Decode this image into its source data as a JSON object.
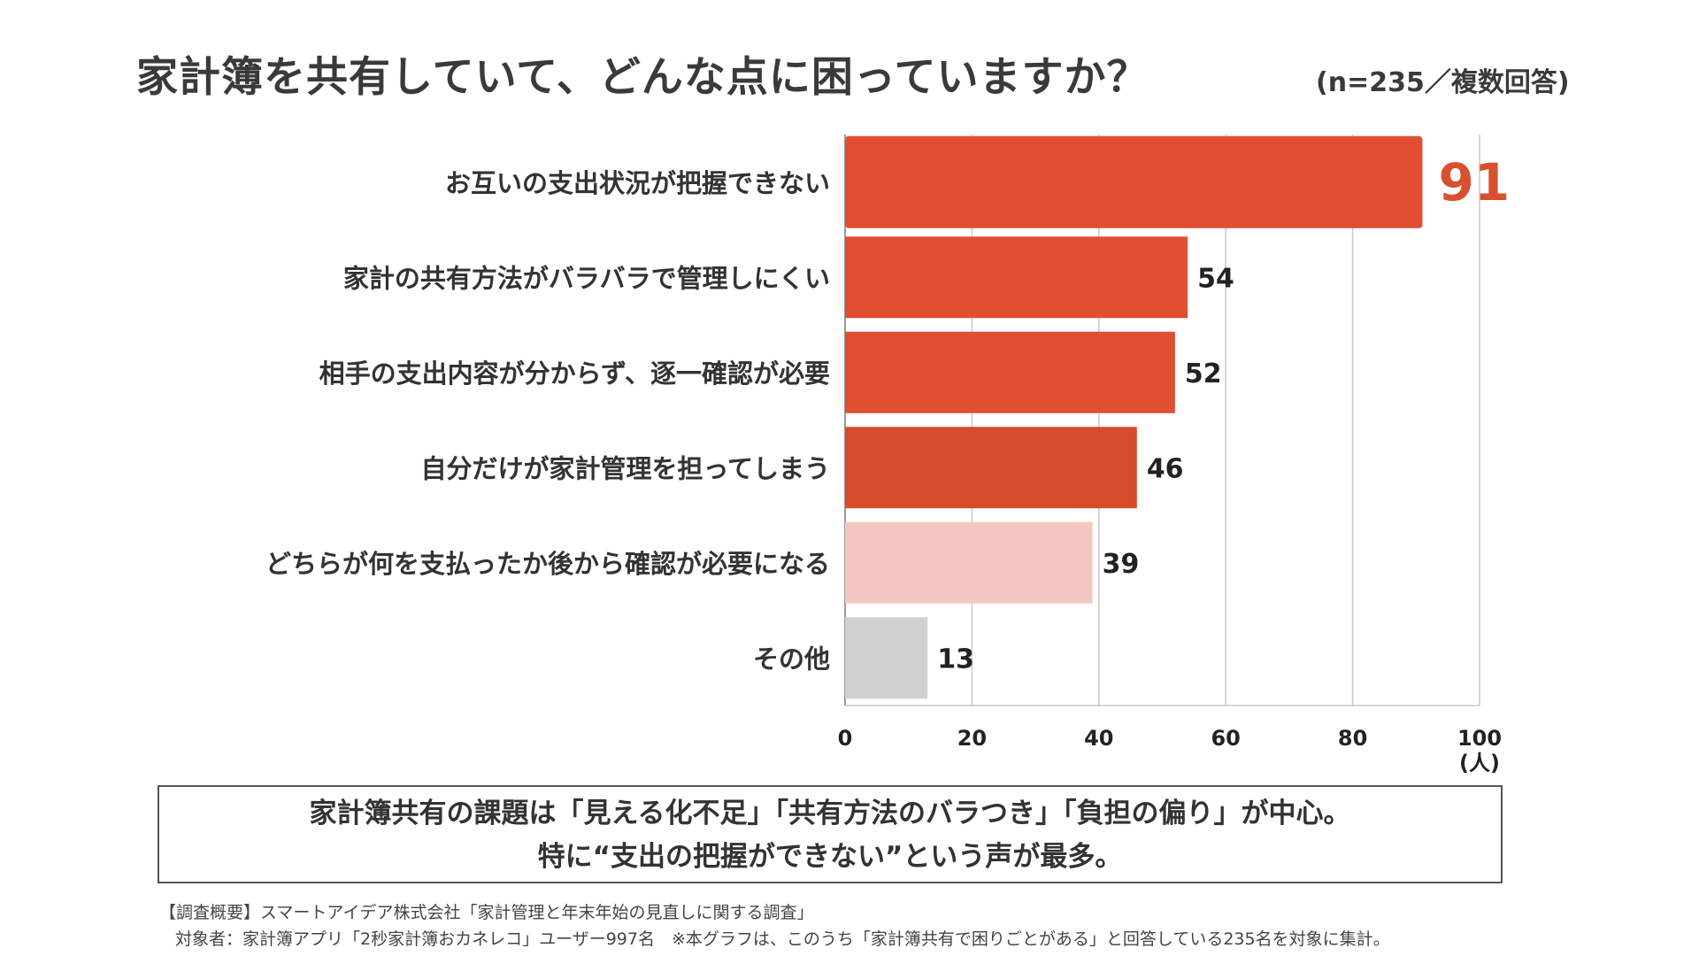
{
  "title": "家計簿を共有していて、どんな点に困っていますか？",
  "subtitle": "(n=235／複数回答)",
  "chart_data": {
    "type": "bar",
    "orientation": "horizontal",
    "categories": [
      "お互いの支出状況が把握できない",
      "家計の共有方法がバラバラで管理しにくい",
      "相手の支出内容が分からず、逐一確認が必要",
      "自分だけが家計管理を担ってしまう",
      "どちらが何を支払ったか後から確認が必要になる",
      "その他"
    ],
    "values": [
      91,
      54,
      52,
      46,
      39,
      13
    ],
    "colors": [
      "#e04f31",
      "#e04f31",
      "#e04f31",
      "#d64c2c",
      "#f4c7c0",
      "#d1d0d0"
    ],
    "highlight_label_color": "#d9502f",
    "xlim": [
      0,
      100
    ],
    "xticks": [
      "0",
      "20",
      "40",
      "60",
      "80",
      "100"
    ],
    "xlabel": "(人)",
    "grid": true
  },
  "summary": {
    "line1": "家計簿共有の課題は「見える化不足」「共有方法のバラつき」「負担の偏り」が中心。",
    "line2": "特に“支出の把握ができない”という声が最多。"
  },
  "footer": {
    "line1": "【調査概要】スマートアイデア株式会社「家計管理と年末年始の見直しに関する調査」",
    "line2": "対象者：家計簿アプリ「2秒家計簿おカネレコ」ユーザー997名　※本グラフは、このうち「家計簿共有で困りごとがある」と回答している235名を対象に集計。"
  }
}
